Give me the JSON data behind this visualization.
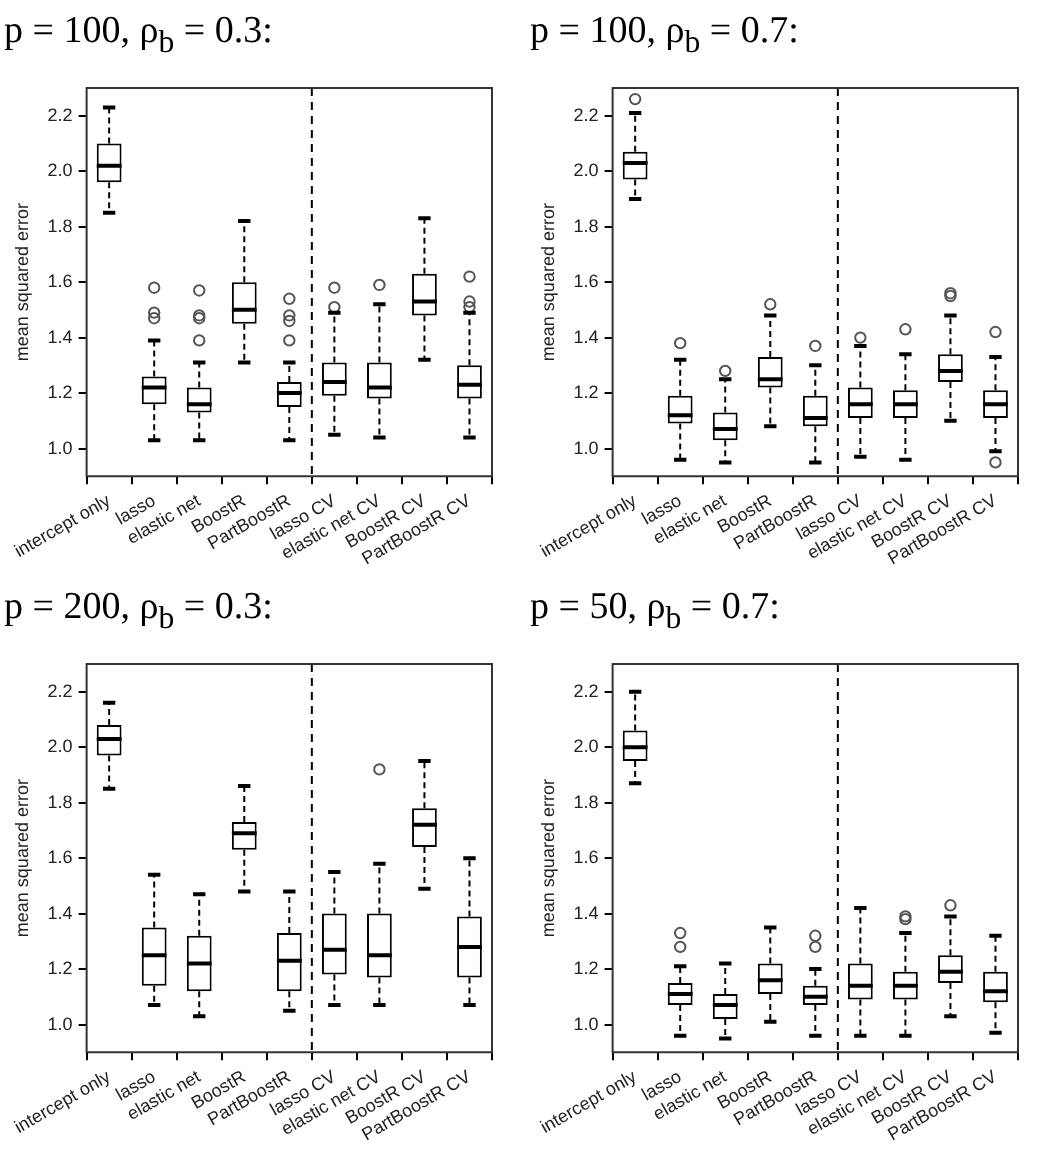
{
  "chart_data": [
    {
      "type": "box",
      "title": "p = 100, ρ$_{b}$ = 0.3:",
      "ylabel": "mean squared error",
      "categories": [
        "intercept only",
        "lasso",
        "elastic net",
        "BoostR",
        "PartBoostR",
        "lasso CV",
        "elastic net CV",
        "BoostR CV",
        "PartBoostR CV"
      ],
      "ylim": [
        0.9,
        2.3
      ],
      "yticks": [
        {
          "value": 1,
          "label": "1.0"
        },
        {
          "value": 1.2,
          "label": "1.2"
        },
        {
          "value": 1.4,
          "label": "1.4"
        },
        {
          "value": 1.6,
          "label": "1.6"
        },
        {
          "value": 1.8,
          "label": "1.8"
        },
        {
          "value": 2,
          "label": "2.0"
        },
        {
          "value": 2.2,
          "label": "2.2"
        }
      ],
      "boxes": [
        {
          "low": 1.85,
          "q1": 1.96,
          "median": 2.02,
          "q3": 2.1,
          "high": 2.23
        },
        {
          "low": 1.03,
          "q1": 1.16,
          "median": 1.22,
          "q3": 1.26,
          "high": 1.39,
          "outliers": [
            1.47,
            1.49,
            1.58
          ]
        },
        {
          "low": 1.03,
          "q1": 1.13,
          "median": 1.16,
          "q3": 1.22,
          "high": 1.31,
          "outliers": [
            1.39,
            1.47,
            1.48,
            1.57
          ]
        },
        {
          "low": 1.31,
          "q1": 1.45,
          "median": 1.5,
          "q3": 1.6,
          "high": 1.82
        },
        {
          "low": 1.03,
          "q1": 1.15,
          "median": 1.2,
          "q3": 1.24,
          "high": 1.31,
          "outliers": [
            1.39,
            1.46,
            1.48,
            1.54
          ]
        },
        {
          "low": 1.05,
          "q1": 1.19,
          "median": 1.24,
          "q3": 1.31,
          "high": 1.49,
          "outliers": [
            1.51,
            1.58
          ]
        },
        {
          "low": 1.04,
          "q1": 1.18,
          "median": 1.22,
          "q3": 1.31,
          "high": 1.52,
          "outliers": [
            1.59
          ]
        },
        {
          "low": 1.32,
          "q1": 1.48,
          "median": 1.53,
          "q3": 1.63,
          "high": 1.83
        },
        {
          "low": 1.04,
          "q1": 1.18,
          "median": 1.23,
          "q3": 1.3,
          "high": 1.49,
          "outliers": [
            1.51,
            1.53,
            1.62
          ]
        }
      ]
    },
    {
      "type": "box",
      "title": "p = 100, ρ$_{b}$ = 0.7:",
      "ylabel": "mean squared error",
      "categories": [
        "intercept only",
        "lasso",
        "elastic net",
        "BoostR",
        "PartBoostR",
        "lasso CV",
        "elastic net CV",
        "BoostR CV",
        "PartBoostR CV"
      ],
      "ylim": [
        0.9,
        2.3
      ],
      "yticks": [
        {
          "value": 1,
          "label": "1.0"
        },
        {
          "value": 1.2,
          "label": "1.2"
        },
        {
          "value": 1.4,
          "label": "1.4"
        },
        {
          "value": 1.6,
          "label": "1.6"
        },
        {
          "value": 1.8,
          "label": "1.8"
        },
        {
          "value": 2,
          "label": "2.0"
        },
        {
          "value": 2.2,
          "label": "2.2"
        }
      ],
      "boxes": [
        {
          "low": 1.9,
          "q1": 1.97,
          "median": 2.03,
          "q3": 2.07,
          "high": 2.21,
          "outliers": [
            2.26
          ]
        },
        {
          "low": 0.96,
          "q1": 1.09,
          "median": 1.12,
          "q3": 1.19,
          "high": 1.32,
          "outliers": [
            1.38
          ]
        },
        {
          "low": 0.95,
          "q1": 1.03,
          "median": 1.07,
          "q3": 1.13,
          "high": 1.25,
          "outliers": [
            1.28
          ]
        },
        {
          "low": 1.08,
          "q1": 1.22,
          "median": 1.25,
          "q3": 1.33,
          "high": 1.48,
          "outliers": [
            1.52
          ]
        },
        {
          "low": 0.95,
          "q1": 1.08,
          "median": 1.11,
          "q3": 1.19,
          "high": 1.3,
          "outliers": [
            1.37
          ]
        },
        {
          "low": 0.97,
          "q1": 1.11,
          "median": 1.16,
          "q3": 1.22,
          "high": 1.37,
          "outliers": [
            1.4
          ]
        },
        {
          "low": 0.96,
          "q1": 1.11,
          "median": 1.16,
          "q3": 1.21,
          "high": 1.34,
          "outliers": [
            1.43
          ]
        },
        {
          "low": 1.1,
          "q1": 1.24,
          "median": 1.28,
          "q3": 1.34,
          "high": 1.48,
          "outliers": [
            1.55,
            1.56
          ]
        },
        {
          "low": 0.99,
          "q1": 1.11,
          "median": 1.16,
          "q3": 1.21,
          "high": 1.33,
          "outliers": [
            0.95,
            1.42
          ]
        }
      ]
    },
    {
      "type": "box",
      "title": "p = 200, ρ$_{b}$ = 0.3:",
      "ylabel": "mean squared error",
      "categories": [
        "intercept only",
        "lasso",
        "elastic net",
        "BoostR",
        "PartBoostR",
        "lasso CV",
        "elastic net CV",
        "BoostR CV",
        "PartBoostR CV"
      ],
      "ylim": [
        0.9,
        2.3
      ],
      "yticks": [
        {
          "value": 1,
          "label": "1.0"
        },
        {
          "value": 1.2,
          "label": "1.2"
        },
        {
          "value": 1.4,
          "label": "1.4"
        },
        {
          "value": 1.6,
          "label": "1.6"
        },
        {
          "value": 1.8,
          "label": "1.8"
        },
        {
          "value": 2,
          "label": "2.0"
        },
        {
          "value": 2.2,
          "label": "2.2"
        }
      ],
      "boxes": [
        {
          "low": 1.85,
          "q1": 1.97,
          "median": 2.03,
          "q3": 2.08,
          "high": 2.16
        },
        {
          "low": 1.07,
          "q1": 1.14,
          "median": 1.25,
          "q3": 1.35,
          "high": 1.54
        },
        {
          "low": 1.03,
          "q1": 1.12,
          "median": 1.22,
          "q3": 1.32,
          "high": 1.47
        },
        {
          "low": 1.48,
          "q1": 1.63,
          "median": 1.69,
          "q3": 1.73,
          "high": 1.86
        },
        {
          "low": 1.05,
          "q1": 1.12,
          "median": 1.23,
          "q3": 1.33,
          "high": 1.48
        },
        {
          "low": 1.07,
          "q1": 1.18,
          "median": 1.27,
          "q3": 1.4,
          "high": 1.55
        },
        {
          "low": 1.07,
          "q1": 1.17,
          "median": 1.25,
          "q3": 1.4,
          "high": 1.58,
          "outliers": [
            1.92
          ]
        },
        {
          "low": 1.49,
          "q1": 1.64,
          "median": 1.72,
          "q3": 1.78,
          "high": 1.95
        },
        {
          "low": 1.07,
          "q1": 1.17,
          "median": 1.28,
          "q3": 1.39,
          "high": 1.6
        }
      ]
    },
    {
      "type": "box",
      "title": "p = 50, ρ$_{b}$ = 0.7:",
      "ylabel": "mean squared error",
      "categories": [
        "intercept only",
        "lasso",
        "elastic net",
        "BoostR",
        "PartBoostR",
        "lasso CV",
        "elastic net CV",
        "BoostR CV",
        "PartBoostR CV"
      ],
      "ylim": [
        0.9,
        2.3
      ],
      "yticks": [
        {
          "value": 1,
          "label": "1.0"
        },
        {
          "value": 1.2,
          "label": "1.2"
        },
        {
          "value": 1.4,
          "label": "1.4"
        },
        {
          "value": 1.6,
          "label": "1.6"
        },
        {
          "value": 1.8,
          "label": "1.8"
        },
        {
          "value": 2,
          "label": "2.0"
        },
        {
          "value": 2.2,
          "label": "2.2"
        }
      ],
      "boxes": [
        {
          "low": 1.87,
          "q1": 1.95,
          "median": 2.0,
          "q3": 2.06,
          "high": 2.2
        },
        {
          "low": 0.96,
          "q1": 1.07,
          "median": 1.11,
          "q3": 1.15,
          "high": 1.21,
          "outliers": [
            1.28,
            1.33
          ]
        },
        {
          "low": 0.95,
          "q1": 1.02,
          "median": 1.07,
          "q3": 1.11,
          "high": 1.22
        },
        {
          "low": 1.01,
          "q1": 1.11,
          "median": 1.16,
          "q3": 1.22,
          "high": 1.35
        },
        {
          "low": 0.96,
          "q1": 1.07,
          "median": 1.1,
          "q3": 1.14,
          "high": 1.2,
          "outliers": [
            1.28,
            1.32
          ]
        },
        {
          "low": 0.96,
          "q1": 1.09,
          "median": 1.14,
          "q3": 1.22,
          "high": 1.42
        },
        {
          "low": 0.96,
          "q1": 1.09,
          "median": 1.14,
          "q3": 1.19,
          "high": 1.33,
          "outliers": [
            1.38,
            1.39
          ]
        },
        {
          "low": 1.03,
          "q1": 1.15,
          "median": 1.19,
          "q3": 1.25,
          "high": 1.39,
          "outliers": [
            1.43
          ]
        },
        {
          "low": 0.97,
          "q1": 1.08,
          "median": 1.12,
          "q3": 1.19,
          "high": 1.32
        }
      ]
    }
  ]
}
